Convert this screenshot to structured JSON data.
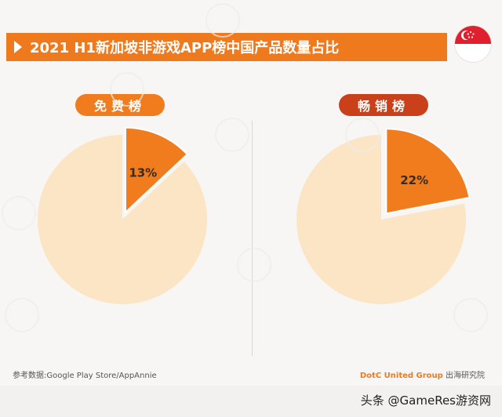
{
  "title": "2021 H1新加坡非游戏APP榜中国产品数量占比",
  "flag_icon": "singapore-flag-icon",
  "colors": {
    "accent": "#ef7a1e",
    "slice_highlight": "#f07c1e",
    "slice_rest": "#fbe5c4",
    "pill_free": "#f07c1e",
    "pill_grossing": "#c9401a"
  },
  "chart_data": [
    {
      "type": "pie",
      "title": "免费榜",
      "slices": [
        {
          "label": "13%",
          "value": 13,
          "highlight": true
        },
        {
          "label": "",
          "value": 87,
          "highlight": false
        }
      ]
    },
    {
      "type": "pie",
      "title": "畅销榜",
      "slices": [
        {
          "label": "22%",
          "value": 22,
          "highlight": true
        },
        {
          "label": "",
          "value": 78,
          "highlight": false
        }
      ]
    }
  ],
  "footer": {
    "source": "参考数据:Google Play Store/AppAnnie",
    "brand": "DotC United Group",
    "institute": " 出海研究院"
  },
  "credit": "头条 @GameRes游资网"
}
